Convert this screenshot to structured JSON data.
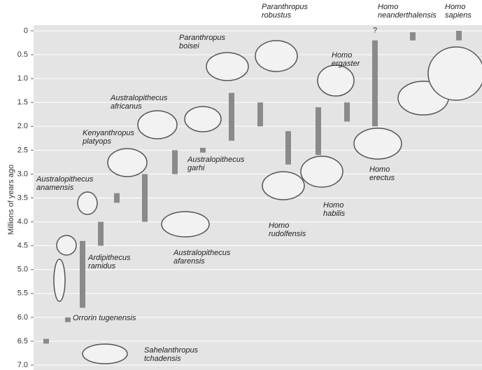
{
  "chart_data": {
    "type": "range-bar",
    "y_label": "Millions of years ago",
    "categories": [
      "Sahelanthropus tchadensis",
      "Orrorin tugenensis",
      "Ardipithecus ramidus",
      "Australopithecus anamensis",
      "Kenyanthropus platyops",
      "Australopithecus afarensis",
      "Australopithecus africanus",
      "Australopithecus garhi",
      "Paranthropus boisei",
      "Paranthropus robustus",
      "Homo rudolfensis",
      "Homo habilis",
      "Homo ergaster",
      "Homo erectus",
      "Homo neanderthalensis",
      "Homo sapiens"
    ],
    "ranges": [
      [
        6.45,
        6.55
      ],
      [
        6.0,
        6.1
      ],
      [
        4.4,
        5.8
      ],
      [
        4.0,
        4.5
      ],
      [
        3.4,
        3.6
      ],
      [
        3.0,
        4.0
      ],
      [
        2.5,
        3.0
      ],
      [
        2.45,
        2.55
      ],
      [
        1.3,
        2.3
      ],
      [
        1.5,
        2.0
      ],
      [
        2.1,
        2.8
      ],
      [
        1.6,
        2.6
      ],
      [
        1.5,
        1.9
      ],
      [
        0.2,
        2.0
      ],
      [
        0.03,
        0.2
      ],
      [
        0,
        0.2
      ]
    ],
    "annotation": "?",
    "color": "#8a8a8a",
    "ylim": [
      0,
      7
    ],
    "yticks": [
      0,
      0.5,
      {
        "value": 1,
        "label": "1.0"
      },
      1.5,
      {
        "value": 2,
        "label": "2.0"
      },
      2.5,
      {
        "value": 3,
        "label": "3.0"
      },
      3.5,
      {
        "value": 4,
        "label": "4.0"
      },
      4.5,
      {
        "value": 5,
        "label": "5.0"
      },
      5.5,
      {
        "value": 6,
        "label": "6.0"
      },
      6.5,
      {
        "value": 7,
        "label": "7.0"
      }
    ],
    "y_inverted": true,
    "grid": true
  }
}
